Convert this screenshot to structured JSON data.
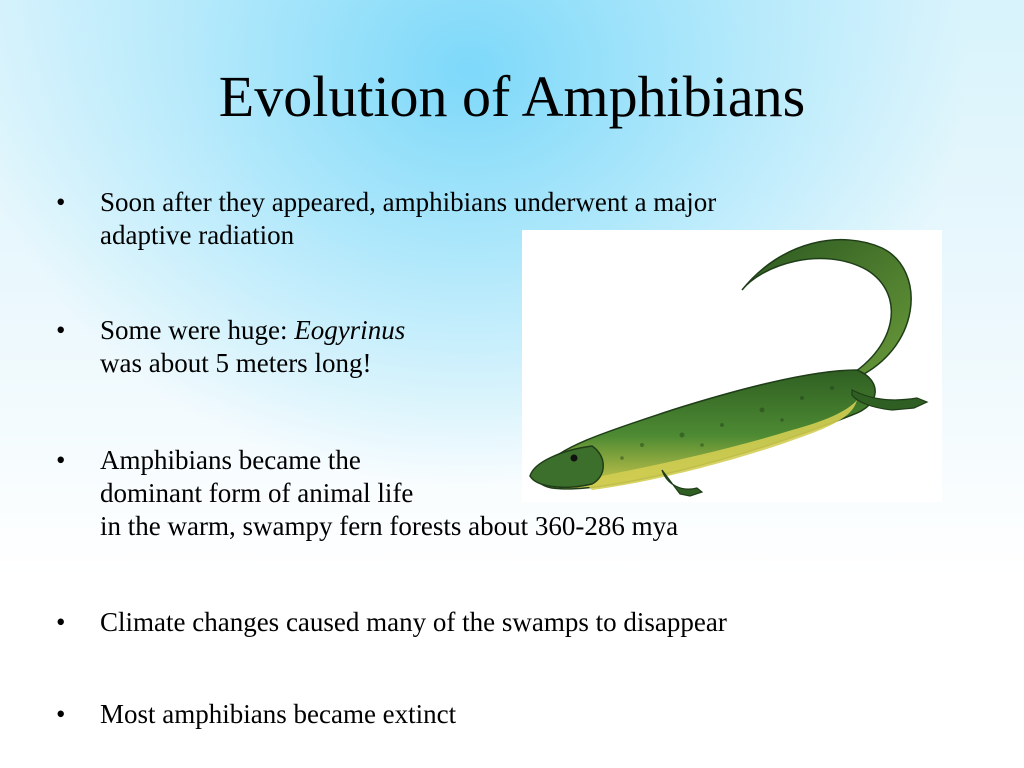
{
  "slide": {
    "title": "Evolution of Amphibians",
    "bullet_symbol": "•",
    "bullets": [
      {
        "lines": [
          "Soon after they appeared, amphibians underwent a major",
          "adaptive radiation"
        ]
      },
      {
        "line1_prefix": "Some were huge: ",
        "line1_italic": "Eogyrinus",
        "line2": "was about 5 meters long!"
      },
      {
        "lines": [
          "Amphibians became the",
          "dominant form of animal life",
          "in the warm, swampy fern forests about 360-286 mya"
        ]
      },
      {
        "lines": [
          "Climate changes caused many of the swamps to disappear"
        ]
      },
      {
        "lines": [
          "Most amphibians became extinct"
        ]
      }
    ]
  },
  "image": {
    "subject": "eogyrinus-illustration",
    "colors": {
      "body": "#3f7a2e",
      "belly": "#c9c84a",
      "dark": "#1f3d18"
    }
  }
}
